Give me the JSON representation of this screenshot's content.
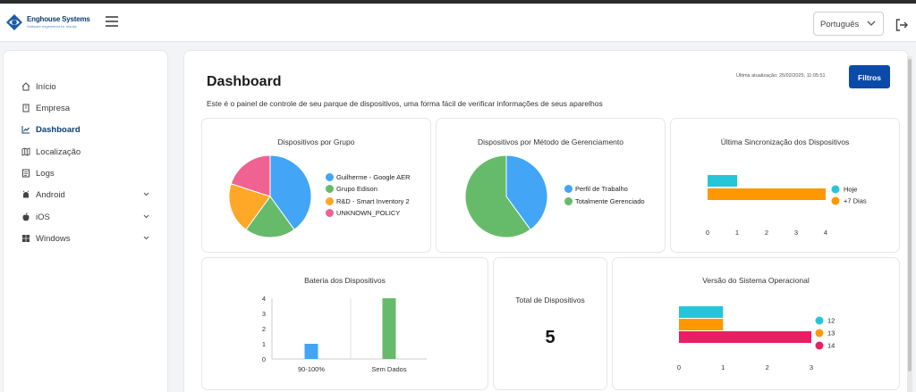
{
  "header": {
    "logo_name": "Enghouse Systems",
    "logo_tagline": "Software engineered for results",
    "language": "Português"
  },
  "sidebar": {
    "items": [
      {
        "label": "Início",
        "icon": "home-icon"
      },
      {
        "label": "Empresa",
        "icon": "building-icon"
      },
      {
        "label": "Dashboard",
        "icon": "chart-line-icon",
        "active": true
      },
      {
        "label": "Localização",
        "icon": "map-icon"
      },
      {
        "label": "Logs",
        "icon": "list-icon"
      },
      {
        "label": "Android",
        "icon": "android-icon",
        "expandable": true
      },
      {
        "label": "iOS",
        "icon": "apple-icon",
        "expandable": true
      },
      {
        "label": "Windows",
        "icon": "windows-icon",
        "expandable": true
      }
    ]
  },
  "main": {
    "title": "Dashboard",
    "description": "Este é o painel de controle de seu parque de dispositivos, uma forma fácil de verificar informações de seus aparelhos",
    "last_update": "Última atualização: 25/02/2025, 11:05:51",
    "filter_button": "Filtros",
    "total_title": "Total de Dispositivos",
    "total_value": "5"
  },
  "colors": {
    "blue": "#42a5f5",
    "green": "#66bb6a",
    "orange": "#ffa726",
    "pink": "#f06292",
    "cyan": "#26c6da",
    "red": "#e91e63",
    "orange2": "#ff9800",
    "accent": "#0b4aa8"
  },
  "chart_data": [
    {
      "type": "pie",
      "title": "Dispositivos por Grupo",
      "labels": [
        "Guilherme - Google AER",
        "Grupo Edison",
        "R&D - Smart Inventory 2",
        "UNKNOWN_POLICY"
      ],
      "values": [
        2,
        1,
        1,
        1
      ],
      "colors": [
        "#42a5f5",
        "#66bb6a",
        "#ffa726",
        "#f06292"
      ],
      "legend": "right"
    },
    {
      "type": "pie",
      "title": "Dispositivos por Método de Gerenciamento",
      "labels": [
        "Perfil de Trabalho",
        "Totalmente Gerenciado"
      ],
      "values": [
        2,
        3
      ],
      "colors": [
        "#42a5f5",
        "#66bb6a"
      ],
      "legend": "right"
    },
    {
      "type": "bar",
      "orientation": "horizontal",
      "title": "Última Sincronização dos Dispositivos",
      "categories": [
        "Hoje",
        "+7 Dias"
      ],
      "values": [
        1,
        4
      ],
      "colors": [
        "#26c6da",
        "#ff9800"
      ],
      "xlim": [
        0,
        4
      ],
      "xticks": [
        "0",
        "1",
        "2",
        "3",
        "4"
      ],
      "legend": "right"
    },
    {
      "type": "bar",
      "title": "Bateria dos Dispositivos",
      "categories": [
        "90-100%",
        "Sem Dados"
      ],
      "values": [
        1,
        4
      ],
      "colors": [
        "#42a5f5",
        "#66bb6a"
      ],
      "ylim": [
        0,
        4
      ],
      "yticks": [
        "0",
        "1",
        "2",
        "3",
        "4"
      ]
    },
    {
      "type": "bar",
      "orientation": "horizontal",
      "title": "Versão do Sistema Operacional",
      "categories": [
        "12",
        "13",
        "14"
      ],
      "values": [
        1,
        1,
        3
      ],
      "colors": [
        "#26c6da",
        "#ff9800",
        "#e91e63"
      ],
      "xlim": [
        0,
        3
      ],
      "xticks": [
        "0",
        "1",
        "2",
        "3"
      ],
      "legend": "right"
    }
  ]
}
